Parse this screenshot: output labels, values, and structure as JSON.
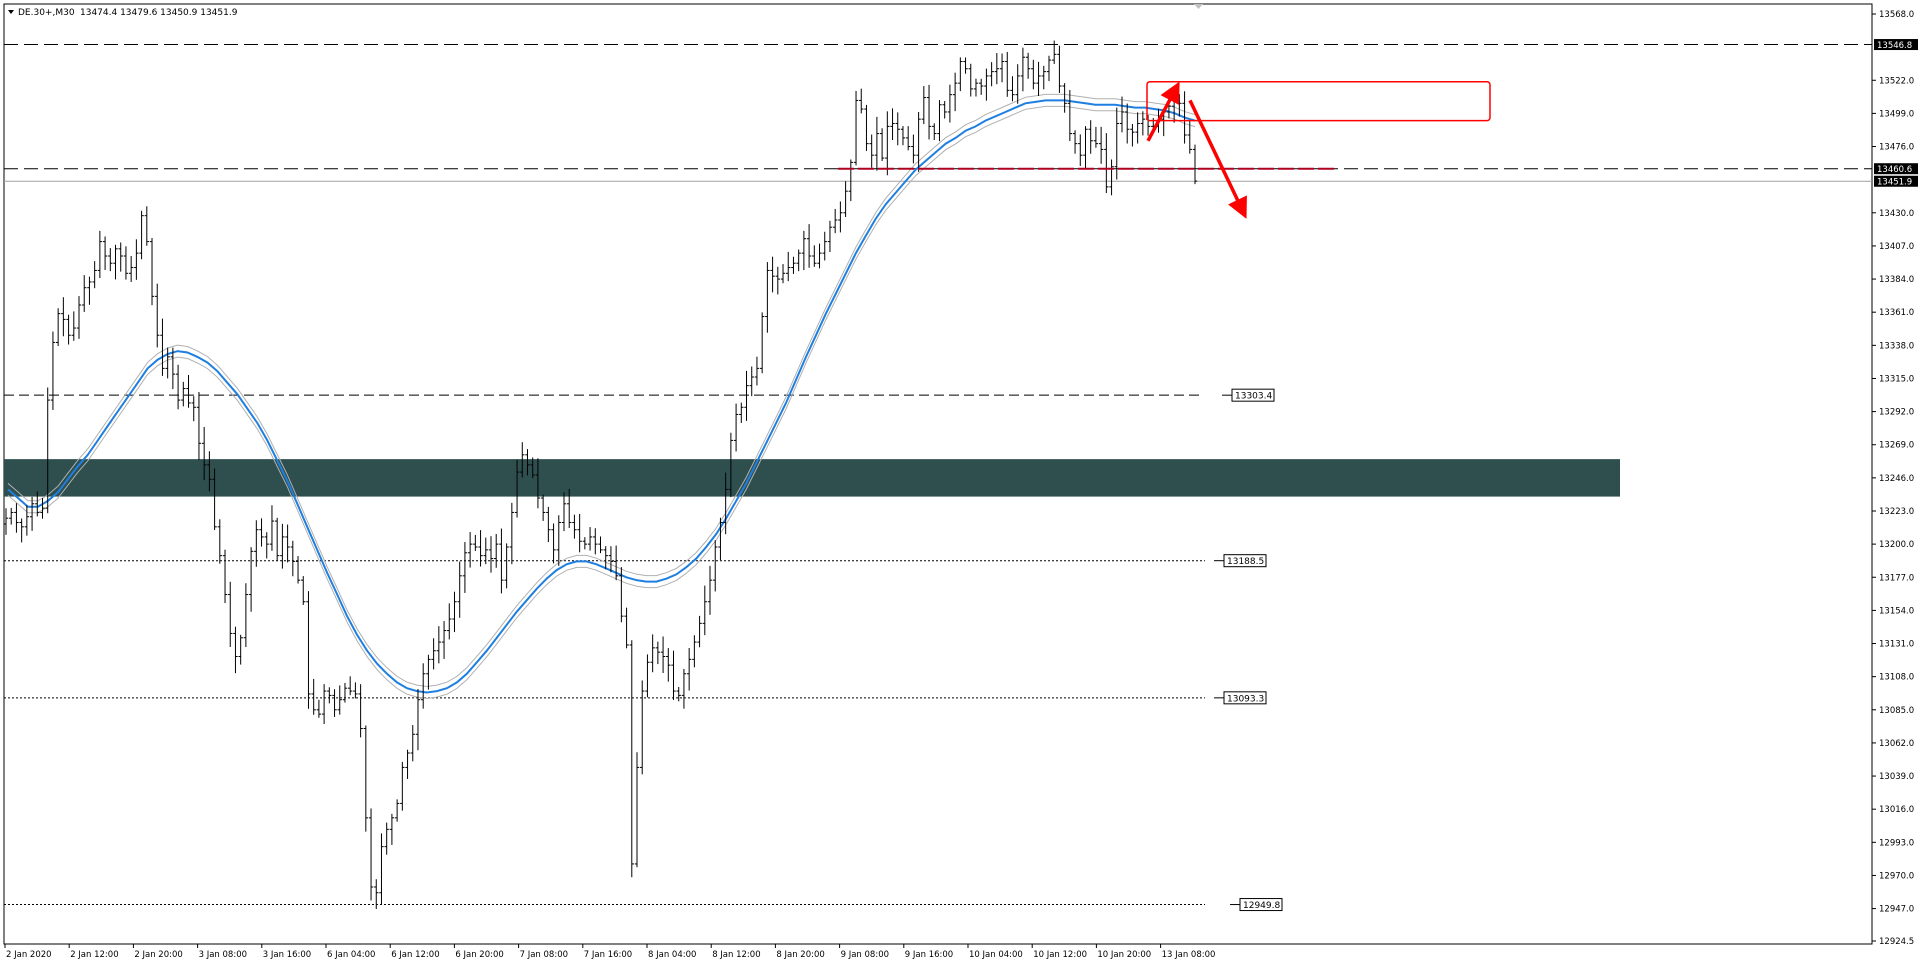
{
  "header": {
    "symbol": "DE.30+,M30",
    "ohlc": "13474.4 13479.6 13450.9 13451.9"
  },
  "chart_data": {
    "type": "candlestick",
    "symbol": "DE.30+",
    "timeframe": "M30",
    "ylim": [
      12924.5,
      13568.0
    ],
    "y_ticks": [
      "13568.0",
      "13522.0",
      "13499.0",
      "13476.0",
      "13430.0",
      "13407.0",
      "13384.0",
      "13361.0",
      "13338.0",
      "13315.0",
      "13292.0",
      "13269.0",
      "13246.0",
      "13223.0",
      "13200.0",
      "13177.0",
      "13154.0",
      "13131.0",
      "13108.0",
      "13085.0",
      "13062.0",
      "13039.0",
      "13016.0",
      "12993.0",
      "12970.0",
      "12947.0",
      "12924.5"
    ],
    "x_labels": [
      "2 Jan 2020",
      "2 Jan 12:00",
      "2 Jan 20:00",
      "3 Jan 08:00",
      "3 Jan 16:00",
      "6 Jan 04:00",
      "6 Jan 12:00",
      "6 Jan 20:00",
      "7 Jan 08:00",
      "7 Jan 16:00",
      "8 Jan 04:00",
      "8 Jan 12:00",
      "8 Jan 20:00",
      "9 Jan 08:00",
      "9 Jan 16:00",
      "10 Jan 04:00",
      "10 Jan 12:00",
      "10 Jan 20:00",
      "13 Jan 08:00"
    ],
    "close_series": [
      13218,
      13222,
      13215,
      13212,
      13219,
      13228,
      13222,
      13225,
      13300,
      13340,
      13360,
      13356,
      13345,
      13350,
      13366,
      13378,
      13382,
      13390,
      13410,
      13400,
      13395,
      13405,
      13400,
      13388,
      13392,
      13402,
      13428,
      13410,
      13372,
      13345,
      13322,
      13330,
      13318,
      13300,
      13308,
      13298,
      13295,
      13270,
      13255,
      13245,
      13212,
      13192,
      13165,
      13138,
      13122,
      13135,
      13165,
      13195,
      13210,
      13205,
      13200,
      13216,
      13192,
      13205,
      13198,
      13188,
      13175,
      13160,
      13096,
      13085,
      13082,
      13098,
      13095,
      13085,
      13092,
      13100,
      13098,
      13096,
      13072,
      13010,
      12962,
      12958,
      12990,
      13002,
      13010,
      13020,
      13045,
      13055,
      13068,
      13092,
      13110,
      13120,
      13126,
      13132,
      13140,
      13148,
      13160,
      13178,
      13194,
      13200,
      13198,
      13192,
      13196,
      13190,
      13200,
      13175,
      13198,
      13222,
      13250,
      13262,
      13255,
      13248,
      13232,
      13222,
      13210,
      13196,
      13215,
      13228,
      13215,
      13210,
      13202,
      13200,
      13205,
      13200,
      13196,
      13192,
      13188,
      13178,
      13150,
      13130,
      12978,
      13045,
      13098,
      13118,
      13128,
      13125,
      13122,
      13116,
      13098,
      13095,
      13110,
      13120,
      13132,
      13145,
      13160,
      13175,
      13198,
      13215,
      13238,
      13272,
      13290,
      13295,
      13310,
      13316,
      13322,
      13358,
      13390,
      13386,
      13384,
      13388,
      13392,
      13395,
      13402,
      13412,
      13400,
      13395,
      13402,
      13410,
      13420,
      13425,
      13430,
      13445,
      13465,
      13508,
      13502,
      13478,
      13470,
      13485,
      13468,
      13490,
      13492,
      13488,
      13482,
      13476,
      13470,
      13495,
      13510,
      13490,
      13485,
      13505,
      13500,
      13512,
      13520,
      13535,
      13530,
      13516,
      13520,
      13518,
      13525,
      13528,
      13530,
      13535,
      13515,
      13512,
      13525,
      13538,
      13530,
      13520,
      13525,
      13528,
      13536,
      13540,
      13518,
      13506,
      13485,
      13478,
      13470,
      13488,
      13480,
      13478,
      13474,
      13448,
      13462,
      13492,
      13500,
      13488,
      13486,
      13492,
      13495,
      13490,
      13490,
      13495,
      13500,
      13504,
      13508,
      13506,
      13484,
      13474,
      13452
    ],
    "ma_series": [
      13238,
      13232,
      13226,
      13226,
      13230,
      13236,
      13245,
      13254,
      13262,
      13272,
      13282,
      13292,
      13302,
      13312,
      13322,
      13328,
      13332,
      13334,
      13333,
      13330,
      13326,
      13320,
      13312,
      13304,
      13294,
      13284,
      13272,
      13258,
      13244,
      13228,
      13212,
      13196,
      13180,
      13165,
      13150,
      13137,
      13126,
      13117,
      13110,
      13104,
      13100,
      13098,
      13097,
      13098,
      13100,
      13104,
      13110,
      13118,
      13126,
      13135,
      13144,
      13153,
      13161,
      13169,
      13176,
      13182,
      13186,
      13188,
      13188,
      13186,
      13183,
      13180,
      13177,
      13175,
      13174,
      13174,
      13176,
      13179,
      13184,
      13190,
      13198,
      13207,
      13218,
      13230,
      13242,
      13256,
      13270,
      13284,
      13298,
      13314,
      13330,
      13345,
      13360,
      13374,
      13388,
      13402,
      13414,
      13426,
      13436,
      13444,
      13452,
      13460,
      13466,
      13472,
      13478,
      13482,
      13487,
      13490,
      13494,
      13497,
      13500,
      13503,
      13506,
      13507,
      13508,
      13508,
      13508,
      13507,
      13506,
      13505,
      13505,
      13505,
      13504,
      13503,
      13503,
      13502,
      13501,
      13499,
      13496,
      13494
    ],
    "horizontal_lines": [
      {
        "price": 13546.8,
        "style": "long-dash",
        "label": "13546.8"
      },
      {
        "price": 13460.6,
        "style": "long-dash",
        "label": "13460.6"
      },
      {
        "price": 13303.4,
        "style": "dash",
        "label": "13303.4"
      },
      {
        "price": 13188.5,
        "style": "dotted",
        "label": "13188.5"
      },
      {
        "price": 13093.3,
        "style": "dotted",
        "label": "13093.3"
      },
      {
        "price": 12949.8,
        "style": "dotted",
        "label": "12949.8"
      }
    ],
    "zone": {
      "from": 13233,
      "to": 13259,
      "color": "#2f4f4f"
    },
    "current_price": {
      "price": 13451.9,
      "label": "13451.9"
    },
    "annotations": {
      "red_rect": {
        "from": 13494,
        "to": 13521
      },
      "support_line_price": 13460.6
    },
    "colors": {
      "ma": "#1e7fe0",
      "envelope": "#b0b0b0",
      "annotation": "#ff0000",
      "support": "#b00020",
      "zone": "#2f4f4f"
    },
    "grid": false
  }
}
